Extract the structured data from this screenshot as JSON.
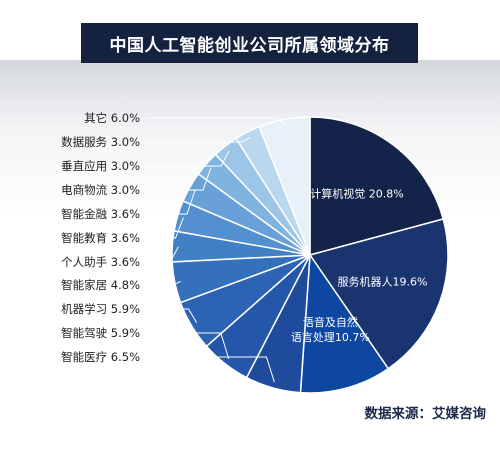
{
  "title": "中国人工智能创业公司所属领域分布",
  "source": "数据来源：艾媒咨询",
  "chart_data": {
    "type": "pie",
    "title": "中国人工智能创业公司所属领域分布",
    "slices": [
      {
        "label": "计算机视觉",
        "value": 20.8,
        "text": "计算机视觉 20.8%",
        "color": "#14234a",
        "inside": true
      },
      {
        "label": "服务机器人",
        "value": 19.6,
        "text": "服务机器人19.6%",
        "color": "#1a3470",
        "inside": true
      },
      {
        "label": "语音及自然语言处理",
        "value": 10.7,
        "text": [
          "语音及自然",
          "语言处理10.7%"
        ],
        "color": "#0d47a1",
        "inside": true
      },
      {
        "label": "智能医疗",
        "value": 6.5,
        "text": "智能医疗 6.5%",
        "color": "#1f4b9c",
        "inside": false
      },
      {
        "label": "智能驾驶",
        "value": 5.9,
        "text": "智能驾驶 5.9%",
        "color": "#2457aa",
        "inside": false
      },
      {
        "label": "机器学习",
        "value": 5.9,
        "text": "机器学习 5.9%",
        "color": "#2c63b4",
        "inside": false
      },
      {
        "label": "智能家居",
        "value": 4.8,
        "text": "智能家居 4.8%",
        "color": "#3570bd",
        "inside": false
      },
      {
        "label": "个人助手",
        "value": 3.6,
        "text": "个人助手 3.6%",
        "color": "#4280c6",
        "inside": false
      },
      {
        "label": "智能教育",
        "value": 3.6,
        "text": "智能教育 3.6%",
        "color": "#5490cf",
        "inside": false
      },
      {
        "label": "智能金融",
        "value": 3.6,
        "text": "智能金融 3.6%",
        "color": "#68a1d8",
        "inside": false
      },
      {
        "label": "电商物流",
        "value": 3.0,
        "text": "电商物流 3.0%",
        "color": "#80b3e0",
        "inside": false
      },
      {
        "label": "垂直应用",
        "value": 3.0,
        "text": "垂直应用 3.0%",
        "color": "#9cc5e8",
        "inside": false
      },
      {
        "label": "数据服务",
        "value": 3.0,
        "text": "数据服务 3.0%",
        "color": "#bad7f0",
        "inside": false
      },
      {
        "label": "其它",
        "value": 6.0,
        "text": "其它 6.0%",
        "color": "#e8f1fa",
        "inside": false
      }
    ]
  }
}
